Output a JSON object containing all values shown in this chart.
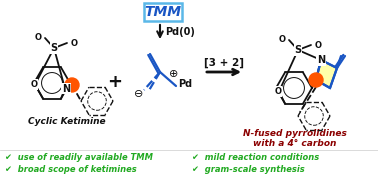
{
  "background": "#ffffff",
  "tmm_box_text": "TMM",
  "pd0_text": "Pd(0)",
  "reaction_label": "[3 + 2]",
  "cyclic_ketimine_label": "Cyclic Ketimine",
  "product_label_line1": "N-fused pyrrolidines",
  "product_label_line2": "with a 4° carbon",
  "bullet1": "✔  use of readily available TMM",
  "bullet2": "✔  broad scope of ketimines",
  "bullet3": "✔  mild reaction conditions",
  "bullet4": "✔  gram-scale synthesis",
  "green": "#22aa22",
  "dark_red": "#8b0000",
  "blue": "#1a56c4",
  "orange": "#ff5500",
  "bond_color": "#111111",
  "blue_bond": "#1a56c4",
  "tmm_border": "#5bb8e8"
}
